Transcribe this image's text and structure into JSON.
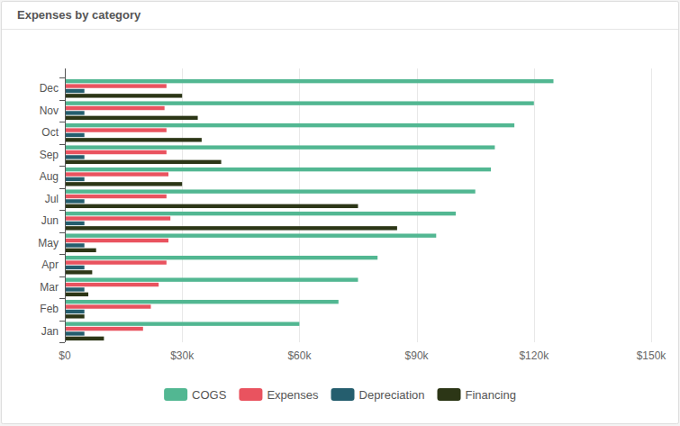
{
  "chart_data": {
    "type": "bar",
    "title": "Expenses by category",
    "orientation": "horizontal",
    "grid": true,
    "legend": "bottom",
    "categories": [
      "Jan",
      "Feb",
      "Mar",
      "Apr",
      "May",
      "Jun",
      "Jul",
      "Aug",
      "Sep",
      "Oct",
      "Nov",
      "Dec"
    ],
    "series": [
      {
        "name": "COGS",
        "color": "#52b792",
        "values": [
          60000,
          70000,
          75000,
          80000,
          95000,
          100000,
          105000,
          109000,
          110000,
          115000,
          120000,
          125000
        ]
      },
      {
        "name": "Expenses",
        "color": "#e9535f",
        "values": [
          20000,
          22000,
          24000,
          26000,
          26500,
          27000,
          26000,
          26500,
          26000,
          26000,
          25500,
          26000
        ]
      },
      {
        "name": "Depreciation",
        "color": "#255e6e",
        "values": [
          5000,
          5000,
          5000,
          5000,
          5000,
          5000,
          5000,
          5000,
          5000,
          5000,
          5000,
          5000
        ]
      },
      {
        "name": "Financing",
        "color": "#2c3616",
        "values": [
          10000,
          5000,
          6000,
          7000,
          8000,
          85000,
          75000,
          30000,
          40000,
          35000,
          34000,
          30000
        ]
      }
    ],
    "xlim": [
      0,
      150000
    ],
    "xticks": [
      {
        "value": 0,
        "label": "$0"
      },
      {
        "value": 30000,
        "label": "$30k"
      },
      {
        "value": 60000,
        "label": "$60k"
      },
      {
        "value": 90000,
        "label": "$90k"
      },
      {
        "value": 120000,
        "label": "$120k"
      },
      {
        "value": 150000,
        "label": "$150k"
      }
    ]
  }
}
